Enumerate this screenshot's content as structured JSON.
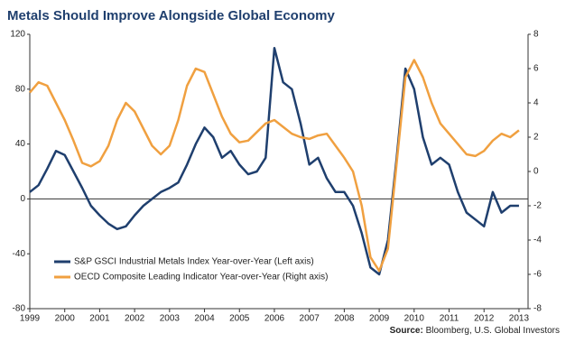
{
  "chart_data": {
    "type": "line",
    "title": "Metals Should Improve Alongside Global Economy",
    "source_label": "Source:",
    "source": "Bloomberg, U.S. Global Investors",
    "x": [
      1999,
      1999.25,
      1999.5,
      1999.75,
      2000,
      2000.25,
      2000.5,
      2000.75,
      2001,
      2001.25,
      2001.5,
      2001.75,
      2002,
      2002.25,
      2002.5,
      2002.75,
      2003,
      2003.25,
      2003.5,
      2003.75,
      2004,
      2004.25,
      2004.5,
      2004.75,
      2005,
      2005.25,
      2005.5,
      2005.75,
      2006,
      2006.25,
      2006.5,
      2006.75,
      2007,
      2007.25,
      2007.5,
      2007.75,
      2008,
      2008.25,
      2008.5,
      2008.75,
      2009,
      2009.25,
      2009.5,
      2009.75,
      2010,
      2010.25,
      2010.5,
      2010.75,
      2011,
      2011.25,
      2011.5,
      2011.75,
      2012,
      2012.25,
      2012.5,
      2012.75,
      2013
    ],
    "series": [
      {
        "name": "S&P GSCI Industrial Metals Index Year-over-Year (Left axis)",
        "color": "#1f3f6e",
        "values": [
          5,
          10,
          22,
          35,
          32,
          20,
          8,
          -5,
          -12,
          -18,
          -22,
          -20,
          -12,
          -5,
          0,
          5,
          8,
          12,
          25,
          40,
          52,
          45,
          30,
          35,
          25,
          18,
          20,
          30,
          110,
          85,
          80,
          55,
          25,
          30,
          15,
          5,
          5,
          -5,
          -25,
          -50,
          -55,
          -30,
          30,
          95,
          80,
          45,
          25,
          30,
          25,
          5,
          -10,
          -15,
          -20,
          5,
          -10,
          -5,
          -5
        ]
      },
      {
        "name": "OECD Composite Leading Indicator Year-over-Year (Right axis)",
        "color": "#f0a040",
        "axis": "y2",
        "values": [
          4.6,
          5.2,
          5.0,
          4.0,
          3.0,
          1.8,
          0.5,
          0.3,
          0.6,
          1.5,
          3.0,
          4.0,
          3.5,
          2.5,
          1.5,
          1.0,
          1.5,
          3.0,
          5.0,
          6.0,
          5.8,
          4.5,
          3.2,
          2.2,
          1.7,
          1.8,
          2.3,
          2.8,
          3.0,
          2.6,
          2.2,
          2.0,
          1.9,
          2.1,
          2.2,
          1.5,
          0.8,
          0.0,
          -2.0,
          -5.0,
          -5.8,
          -4.5,
          0.5,
          5.5,
          6.5,
          5.5,
          4.0,
          2.8,
          2.2,
          1.6,
          1.0,
          0.9,
          1.2,
          1.8,
          2.2,
          2.0,
          2.4
        ]
      }
    ],
    "xlim": [
      1999,
      2013.26
    ],
    "xticks": [
      1999,
      2000,
      2001,
      2002,
      2003,
      2004,
      2005,
      2006,
      2007,
      2008,
      2009,
      2010,
      2011,
      2012,
      2013
    ],
    "ylim": [
      -80,
      120
    ],
    "yticks": [
      -80,
      -40,
      0,
      40,
      80,
      120
    ],
    "y2lim": [
      -8,
      8
    ],
    "y2ticks": [
      -8,
      -6,
      -4,
      -2,
      0,
      2,
      4,
      6,
      8
    ],
    "grid": false,
    "legend": "lower left"
  }
}
